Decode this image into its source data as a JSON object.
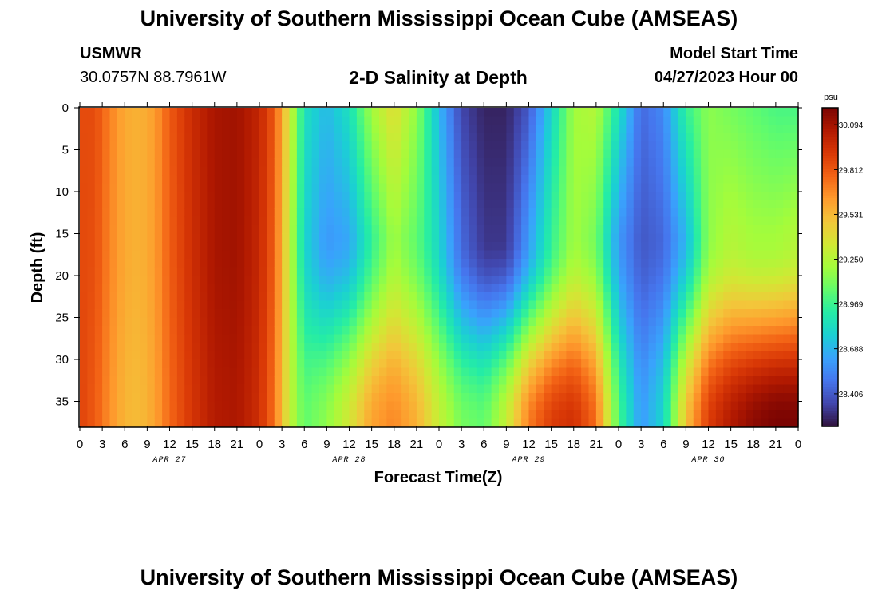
{
  "header": {
    "title": "University of Southern Mississippi Ocean Cube (AMSEAS)",
    "station": "USMWR",
    "coordinates": "30.0757N  88.7961W",
    "plot_title": "2-D Salinity at Depth",
    "model_start_label": "Model Start Time",
    "model_start_value": "04/27/2023 Hour 00"
  },
  "footer": {
    "title": "University of Southern Mississippi Ocean Cube (AMSEAS)"
  },
  "chart_data": {
    "type": "heatmap",
    "title": "2-D Salinity at Depth",
    "xlabel": "Forecast Time(Z)",
    "ylabel": "Depth (ft)",
    "x_range_hours": [
      0,
      96
    ],
    "y_range_ft": [
      0,
      38
    ],
    "x_tick_labels": [
      "0",
      "3",
      "6",
      "9",
      "12",
      "15",
      "18",
      "21",
      "0",
      "3",
      "6",
      "9",
      "12",
      "15",
      "18",
      "21",
      "0",
      "3",
      "6",
      "9",
      "12",
      "15",
      "18",
      "21",
      "0",
      "3",
      "6",
      "9",
      "12",
      "15",
      "18",
      "21",
      "0"
    ],
    "y_ticks": [
      0,
      5,
      10,
      15,
      20,
      25,
      30,
      35
    ],
    "date_labels": [
      {
        "label": "APR 27",
        "hour": 12
      },
      {
        "label": "APR 28",
        "hour": 36
      },
      {
        "label": "APR 29",
        "hour": 60
      },
      {
        "label": "APR 30",
        "hour": 84
      }
    ],
    "colorbar": {
      "unit": "psu",
      "range": [
        28.2,
        30.2
      ],
      "ticks": [
        "30.094",
        "29.812",
        "29.531",
        "29.250",
        "28.969",
        "28.688",
        "28.406"
      ],
      "colors": [
        "#30123b",
        "#4145ab",
        "#4675ed",
        "#39a2fc",
        "#1bcfd4",
        "#24eca6",
        "#61fc6c",
        "#a4fc3b",
        "#d1e834",
        "#f3c63a",
        "#fe9b2d",
        "#f36315",
        "#d93806",
        "#b11901",
        "#7a0402"
      ]
    },
    "salinity_profiles": [
      {
        "hour": 0,
        "surface": 29.85,
        "mid": 29.86,
        "bottom": 29.88
      },
      {
        "hour": 2,
        "surface": 29.85,
        "mid": 29.84,
        "bottom": 29.8
      },
      {
        "hour": 4,
        "surface": 29.7,
        "mid": 29.69,
        "bottom": 29.66
      },
      {
        "hour": 6,
        "surface": 29.58,
        "mid": 29.58,
        "bottom": 29.54
      },
      {
        "hour": 8,
        "surface": 29.55,
        "mid": 29.55,
        "bottom": 29.52
      },
      {
        "hour": 10,
        "surface": 29.62,
        "mid": 29.62,
        "bottom": 29.6
      },
      {
        "hour": 12,
        "surface": 29.8,
        "mid": 29.79,
        "bottom": 29.76
      },
      {
        "hour": 15,
        "surface": 29.97,
        "mid": 29.96,
        "bottom": 29.93
      },
      {
        "hour": 18,
        "surface": 30.08,
        "mid": 30.08,
        "bottom": 30.05
      },
      {
        "hour": 21,
        "surface": 30.1,
        "mid": 30.1,
        "bottom": 30.07
      },
      {
        "hour": 24,
        "surface": 30.0,
        "mid": 29.99,
        "bottom": 29.96
      },
      {
        "hour": 26,
        "surface": 29.8,
        "mid": 29.78,
        "bottom": 29.73
      },
      {
        "hour": 28,
        "surface": 29.35,
        "mid": 29.3,
        "bottom": 29.3
      },
      {
        "hour": 30,
        "surface": 28.85,
        "mid": 28.8,
        "bottom": 29.05
      },
      {
        "hour": 33,
        "surface": 28.7,
        "mid": 28.6,
        "bottom": 29.15
      },
      {
        "hour": 36,
        "surface": 28.85,
        "mid": 28.65,
        "bottom": 29.35
      },
      {
        "hour": 39,
        "surface": 29.2,
        "mid": 28.95,
        "bottom": 29.6
      },
      {
        "hour": 42,
        "surface": 29.4,
        "mid": 29.2,
        "bottom": 29.68
      },
      {
        "hour": 45,
        "surface": 29.15,
        "mid": 29.05,
        "bottom": 29.55
      },
      {
        "hour": 48,
        "surface": 28.7,
        "mid": 28.8,
        "bottom": 29.3
      },
      {
        "hour": 51,
        "surface": 28.35,
        "mid": 28.45,
        "bottom": 29.1
      },
      {
        "hour": 54,
        "surface": 28.25,
        "mid": 28.3,
        "bottom": 29.05
      },
      {
        "hour": 57,
        "surface": 28.25,
        "mid": 28.3,
        "bottom": 29.3
      },
      {
        "hour": 60,
        "surface": 28.4,
        "mid": 28.6,
        "bottom": 29.7
      },
      {
        "hour": 63,
        "surface": 28.8,
        "mid": 28.95,
        "bottom": 29.9
      },
      {
        "hour": 66,
        "surface": 29.2,
        "mid": 29.2,
        "bottom": 29.95
      },
      {
        "hour": 69,
        "surface": 29.25,
        "mid": 29.1,
        "bottom": 29.75
      },
      {
        "hour": 72,
        "surface": 28.85,
        "mid": 28.6,
        "bottom": 29.0
      },
      {
        "hour": 75,
        "surface": 28.45,
        "mid": 28.4,
        "bottom": 28.6
      },
      {
        "hour": 78,
        "surface": 28.55,
        "mid": 28.45,
        "bottom": 28.8
      },
      {
        "hour": 81,
        "surface": 28.95,
        "mid": 28.7,
        "bottom": 29.5
      },
      {
        "hour": 84,
        "surface": 29.15,
        "mid": 29.15,
        "bottom": 29.9
      },
      {
        "hour": 87,
        "surface": 29.1,
        "mid": 29.25,
        "bottom": 30.05
      },
      {
        "hour": 90,
        "surface": 29.05,
        "mid": 29.2,
        "bottom": 30.15
      },
      {
        "hour": 93,
        "surface": 29.0,
        "mid": 29.2,
        "bottom": 30.2
      },
      {
        "hour": 96,
        "surface": 29.0,
        "mid": 29.25,
        "bottom": 30.2
      }
    ]
  }
}
